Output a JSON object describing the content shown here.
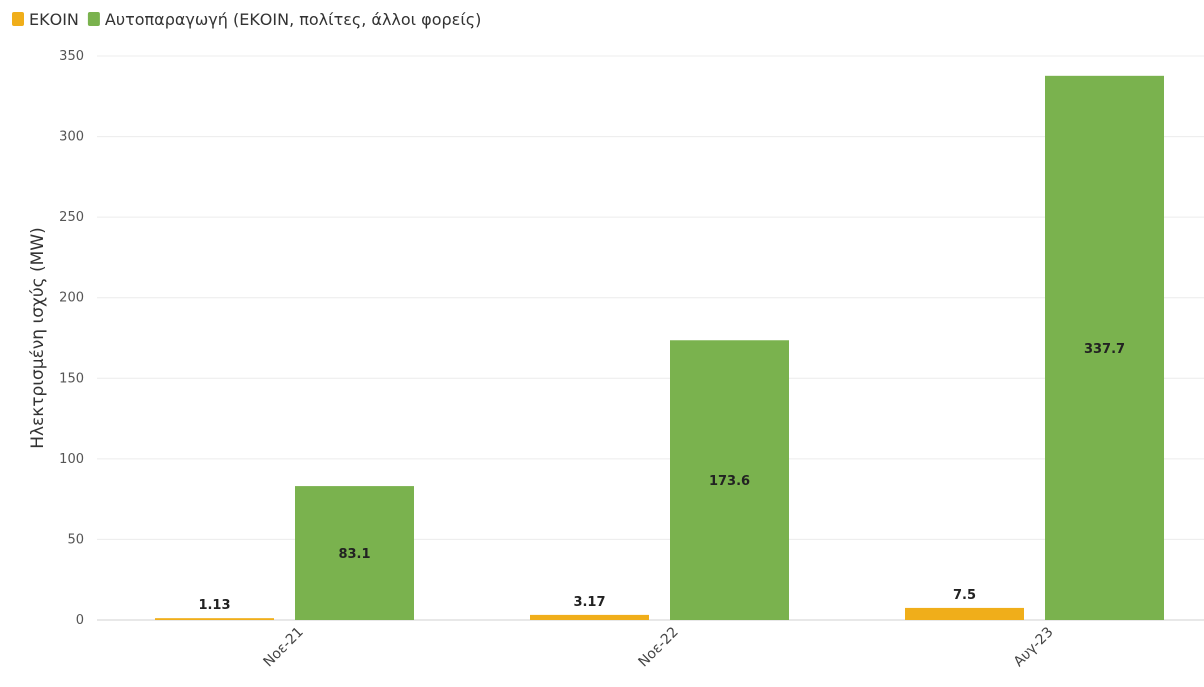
{
  "chart_data": {
    "type": "bar",
    "title": "",
    "xlabel": "",
    "ylabel": "Ηλεκτρισμένη ισχύς (MW)",
    "categories": [
      "Νοε-21",
      "Νοε-22",
      "Αυγ-23"
    ],
    "series": [
      {
        "name": "ΕΚΟΙΝ",
        "color": "#F0AE1A",
        "values": [
          1.13,
          3.17,
          7.5
        ]
      },
      {
        "name": "Αυτοπαραγωγή (ΕΚΟΙΝ, πολίτες, άλλοι φορείς)",
        "color": "#7AB24E",
        "values": [
          83.1,
          173.6,
          337.7
        ]
      }
    ],
    "ylim": [
      0,
      350
    ],
    "yticks": [
      0,
      50,
      100,
      150,
      200,
      250,
      300,
      350
    ],
    "grid": true,
    "legend_position": "top-left"
  }
}
